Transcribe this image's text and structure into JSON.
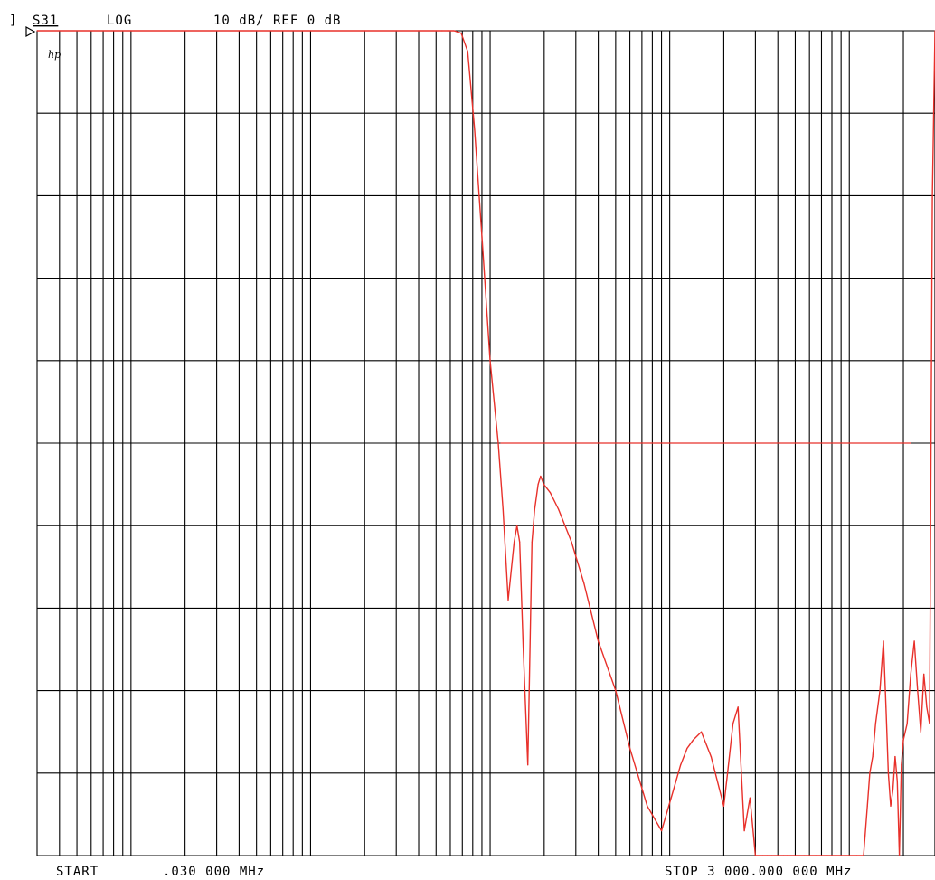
{
  "chart_data": {
    "type": "line",
    "header": {
      "bracket": "]",
      "param": "S31",
      "format": "LOG",
      "scale": "10 dB/ REF 0 dB"
    },
    "brand": "hp",
    "footer": {
      "start_label": "START",
      "start_value": ".030 000 MHz",
      "stop_label": "STOP 3 000.000 000 MHz"
    },
    "x_scale": "log",
    "xlim": [
      0.03,
      3000
    ],
    "ylim": [
      -100,
      0
    ],
    "grid": true,
    "colors": {
      "trace": "#e8302a",
      "grid": "#000000",
      "background": "#ffffff"
    },
    "reference_line": {
      "y": -50,
      "x_from": 11.4,
      "x_to": 2200
    },
    "series": [
      {
        "x": [
          0.03,
          0.1,
          0.5,
          1,
          2,
          3,
          4,
          5,
          5.4,
          5.8,
          6.3,
          6.9,
          7.5,
          8.2,
          9.0,
          10.0,
          11.1,
          11.8,
          12.6,
          13.6,
          14.1,
          14.6,
          15.3,
          16.2,
          17.1,
          17.7,
          18.5,
          19.1,
          19.9,
          21.6,
          24.0,
          28.4,
          33.3,
          40,
          50,
          60,
          75,
          90,
          105,
          115,
          125,
          135,
          150,
          170,
          200,
          210,
          225,
          240,
          260,
          280,
          300,
          330,
          350,
          370,
          400,
          430,
          450,
          500,
          560,
          600,
          650,
          700,
          755,
          800,
          900,
          1000,
          1100,
          1200,
          1260,
          1300,
          1350,
          1400,
          1480,
          1550,
          1600,
          1650,
          1700,
          1750,
          1800,
          1850,
          1900,
          1950,
          2000,
          2100,
          2200,
          2300,
          2400,
          2500,
          2600,
          2700,
          2800,
          2900,
          3000
        ],
        "values": [
          0,
          0,
          0,
          0,
          0,
          0,
          0,
          0,
          0,
          0,
          0,
          -0.3,
          -2.5,
          -12,
          -25,
          -40,
          -50,
          -58,
          -69,
          -62,
          -60,
          -62,
          -75,
          -89,
          -62,
          -58,
          -55,
          -54,
          -55,
          -56,
          -58,
          -62,
          -67,
          -74,
          -80,
          -87,
          -94,
          -97,
          -92,
          -89,
          -87,
          -86,
          -85,
          -88,
          -94,
          -90,
          -84,
          -82,
          -97,
          -93,
          -100,
          -100,
          -100,
          -100,
          -100,
          -100,
          -100,
          -100,
          -100,
          -100,
          -100,
          -100,
          -100,
          -100,
          -100,
          -100,
          -100,
          -100,
          -94,
          -90,
          -88,
          -84,
          -80,
          -74,
          -82,
          -90,
          -94,
          -92,
          -88,
          -91,
          -100,
          -89,
          -86,
          -84,
          -78,
          -74,
          -80,
          -85,
          -78,
          -82,
          -84,
          -20,
          0
        ]
      }
    ]
  }
}
